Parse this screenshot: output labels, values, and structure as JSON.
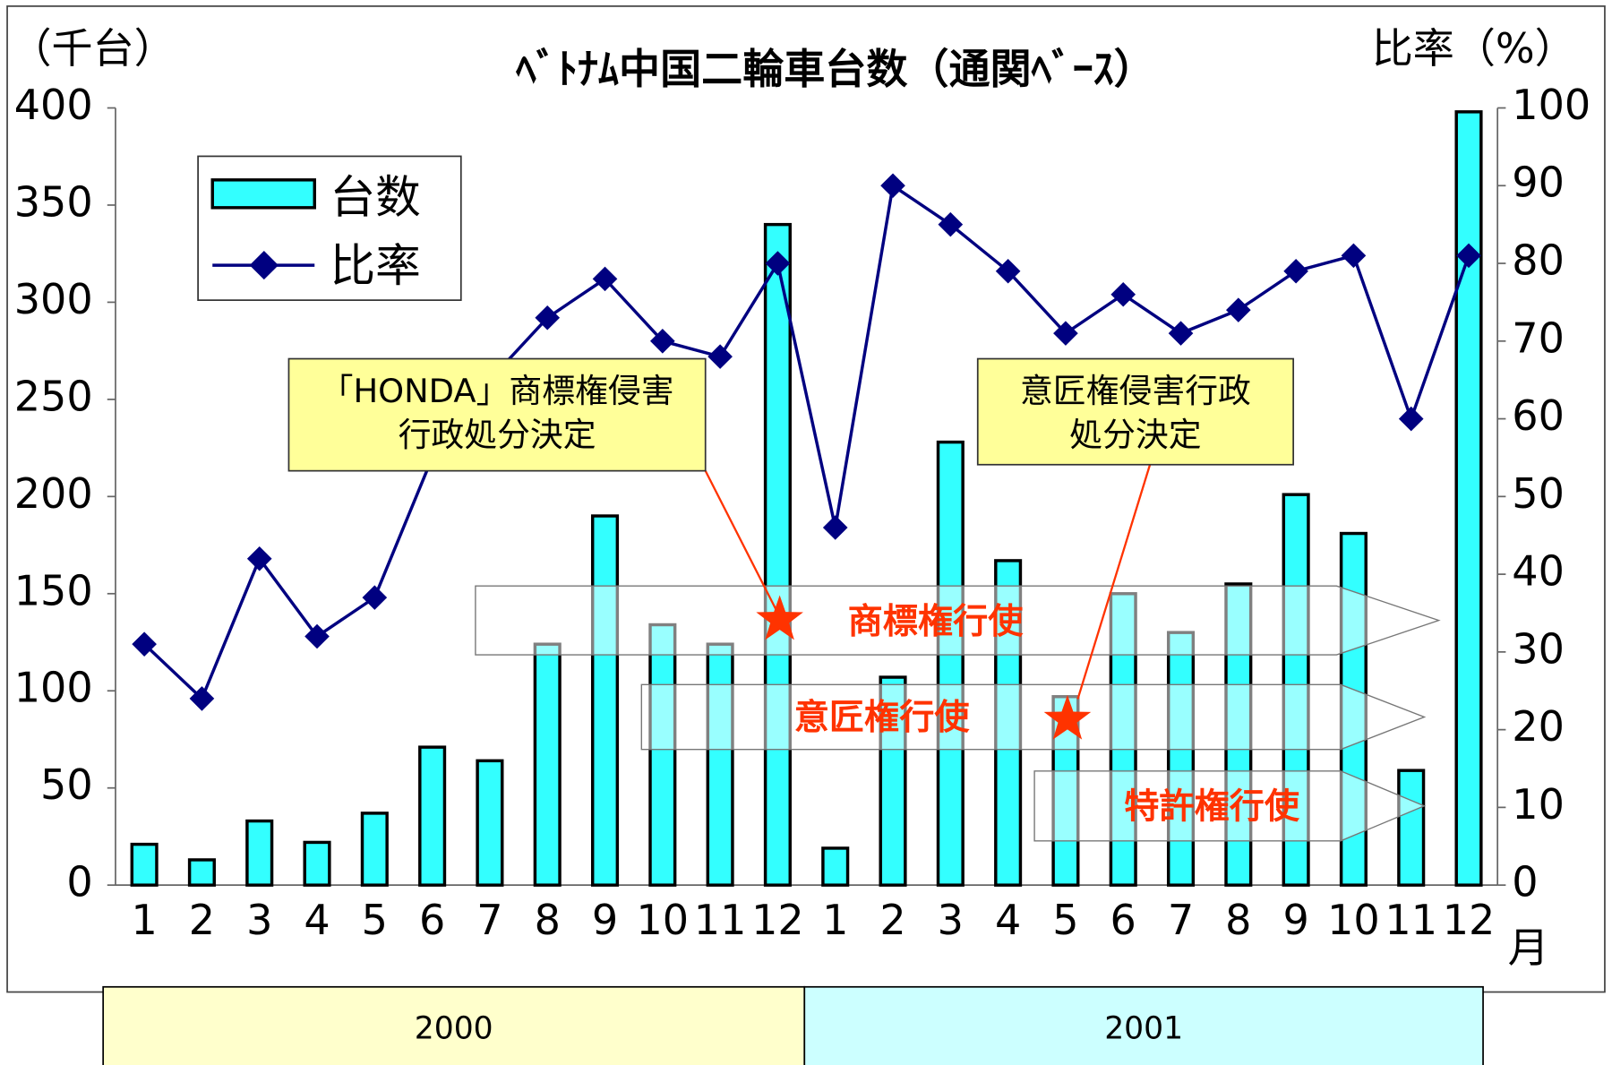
{
  "chart_data": {
    "type": "bar",
    "title": "ﾍﾞﾄﾅﾑ中国二輪車台数（通関ﾍﾞｰｽ）",
    "y_label": "（千台）",
    "y2_label": "比率（%）",
    "x_unit": "月",
    "categories": [
      "1",
      "2",
      "3",
      "4",
      "5",
      "6",
      "7",
      "8",
      "9",
      "10",
      "11",
      "12",
      "1",
      "2",
      "3",
      "4",
      "5",
      "6",
      "7",
      "8",
      "9",
      "10",
      "11",
      "12"
    ],
    "years": [
      "2000",
      "2001"
    ],
    "series": [
      {
        "name": "台数",
        "type": "bar",
        "color": "#33ffff",
        "values": [
          21,
          13,
          33,
          22,
          37,
          71,
          64,
          124,
          190,
          134,
          124,
          340,
          19,
          107,
          228,
          167,
          97,
          150,
          130,
          155,
          201,
          181,
          59,
          398
        ]
      },
      {
        "name": "比率",
        "type": "line",
        "axis": "y2",
        "color": "#000080",
        "values": [
          31,
          24,
          42,
          32,
          37,
          55,
          65,
          73,
          78,
          70,
          68,
          80,
          46,
          90,
          85,
          79,
          71,
          76,
          71,
          74,
          79,
          81,
          60,
          81
        ]
      }
    ],
    "ylim": [
      0,
      400
    ],
    "yticks": [
      0,
      50,
      100,
      150,
      200,
      250,
      300,
      350,
      400
    ],
    "y2lim": [
      0,
      100
    ],
    "y2ticks": [
      0,
      10,
      20,
      30,
      40,
      50,
      60,
      70,
      80,
      90,
      100
    ],
    "callouts": [
      {
        "lines": [
          "「HONDA」商標権侵害",
          "行政処分決定"
        ]
      },
      {
        "lines": [
          "意匠権侵害行政",
          "処分決定"
        ]
      }
    ],
    "phases": [
      "商標権行使",
      "意匠権行使",
      "特許権行使"
    ]
  }
}
